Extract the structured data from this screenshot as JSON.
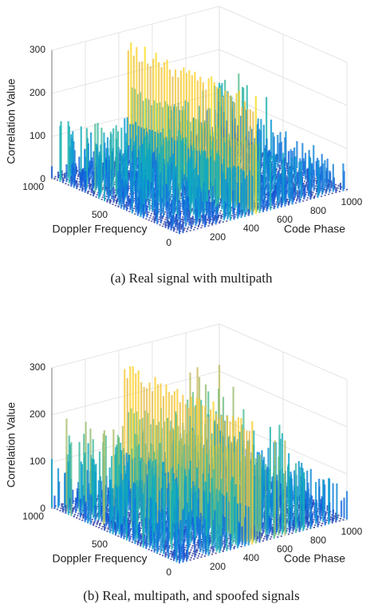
{
  "charts": [
    {
      "chart_data": {
        "type": "surface3d",
        "caption": "(a) Real signal with multipath",
        "xlabel": "Code Phase",
        "ylabel": "Doppler Frequency",
        "zlabel": "Correlation Value",
        "xlim": [
          0,
          1000
        ],
        "ylim": [
          0,
          1000
        ],
        "zlim": [
          0,
          300
        ],
        "xticks": [
          200,
          400,
          600,
          800,
          1000
        ],
        "yticks": [
          0,
          500,
          1000
        ],
        "zticks": [
          0,
          100,
          200,
          300
        ],
        "grid": true
      }
    },
    {
      "chart_data": {
        "type": "surface3d",
        "caption": "(b) Real, multipath, and spoofed signals",
        "xlabel": "Code Phase",
        "ylabel": "Doppler Frequency",
        "zlabel": "Correlation Value",
        "xlim": [
          0,
          1000
        ],
        "ylim": [
          0,
          1000
        ],
        "zlim": [
          0,
          300
        ],
        "xticks": [
          200,
          400,
          600,
          800,
          1000
        ],
        "yticks": [
          0,
          500,
          1000
        ],
        "zticks": [
          0,
          100,
          200,
          300
        ],
        "grid": true
      }
    }
  ]
}
